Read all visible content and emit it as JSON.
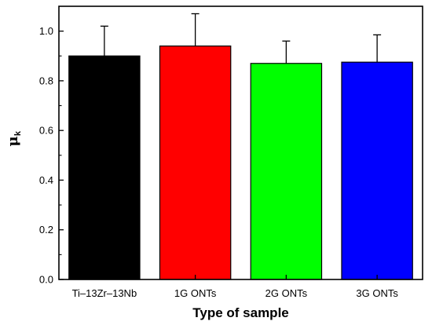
{
  "chart_data": {
    "type": "bar",
    "title": "",
    "xlabel": "Type of sample",
    "ylabel": "μ",
    "ylabel_subscript": "k",
    "ylim": [
      0,
      1.1
    ],
    "yticks": [
      "0.0",
      "0.2",
      "0.4",
      "0.6",
      "0.8",
      "1.0"
    ],
    "categories": [
      "Ti–13Zr–13Nb",
      "1G ONTs",
      "2G ONTs",
      "3G ONTs"
    ],
    "values": [
      0.9,
      0.94,
      0.87,
      0.875
    ],
    "errors": [
      0.12,
      0.13,
      0.09,
      0.11
    ],
    "colors": [
      "#000000",
      "#ff0000",
      "#00ff00",
      "#0000ff"
    ],
    "grid": false,
    "legend": "none"
  }
}
